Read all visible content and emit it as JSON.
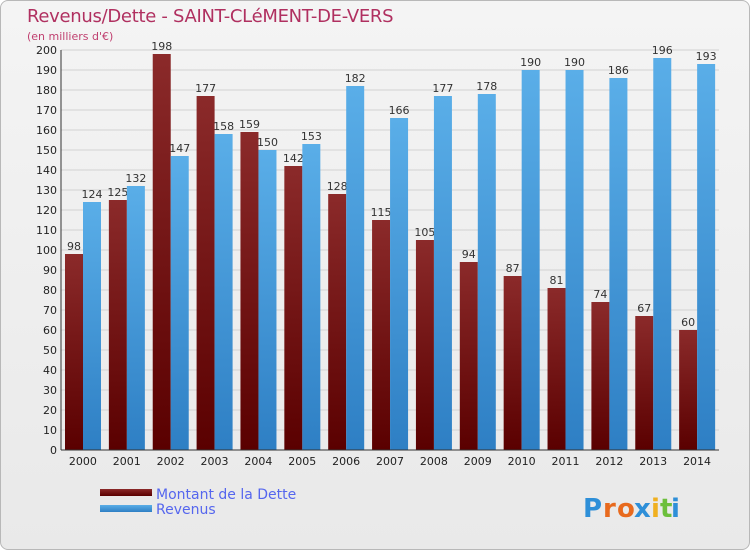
{
  "chart_data": {
    "type": "bar",
    "title": "Revenus/Dette - SAINT-CLéMENT-DE-VERS",
    "subtitle": "(en milliers d'€)",
    "categories": [
      "2000",
      "2001",
      "2002",
      "2003",
      "2004",
      "2005",
      "2006",
      "2007",
      "2008",
      "2009",
      "2010",
      "2011",
      "2012",
      "2013",
      "2014"
    ],
    "series": [
      {
        "name": "Montant de la Dette",
        "color": "#7b1c1c",
        "values": [
          98,
          125,
          198,
          177,
          159,
          142,
          128,
          115,
          105,
          94,
          87,
          81,
          74,
          67,
          60
        ]
      },
      {
        "name": "Revenus",
        "color": "#4aa3e0",
        "values": [
          124,
          132,
          147,
          158,
          150,
          153,
          182,
          166,
          177,
          178,
          190,
          190,
          186,
          196,
          193
        ]
      }
    ],
    "ylim": [
      0,
      200
    ],
    "yticks": [
      0,
      10,
      20,
      30,
      40,
      50,
      60,
      70,
      80,
      90,
      100,
      110,
      120,
      130,
      140,
      150,
      160,
      170,
      180,
      190,
      200
    ],
    "grid": true,
    "legend_position": "bottom-left"
  },
  "branding": {
    "logo_letters": [
      "P",
      "r",
      "o",
      "x",
      "i",
      "t",
      "i"
    ],
    "logo_colors": [
      "#2e8fd8",
      "#e86a1e",
      "#e86a1e",
      "#2e8fd8",
      "#f0b020",
      "#6cbf3c",
      "#2e8fd8"
    ]
  }
}
